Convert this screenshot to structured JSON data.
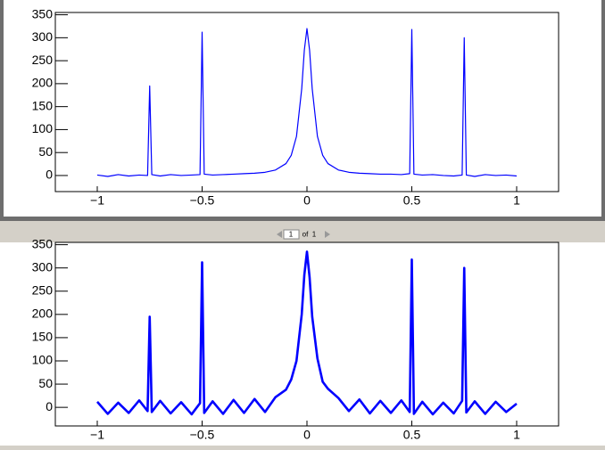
{
  "chart_data": [
    {
      "type": "line",
      "color": "#0000ff",
      "x": [
        -1,
        -0.95,
        -0.9,
        -0.85,
        -0.8,
        -0.76,
        -0.75,
        -0.74,
        -0.7,
        -0.65,
        -0.6,
        -0.55,
        -0.51,
        -0.5,
        -0.49,
        -0.45,
        -0.4,
        -0.35,
        -0.3,
        -0.25,
        -0.2,
        -0.15,
        -0.1,
        -0.075,
        -0.05,
        -0.025,
        -0.0125,
        0,
        0.0125,
        0.025,
        0.05,
        0.075,
        0.1,
        0.15,
        0.2,
        0.25,
        0.3,
        0.35,
        0.4,
        0.45,
        0.49,
        0.5,
        0.51,
        0.55,
        0.6,
        0.65,
        0.7,
        0.74,
        0.75,
        0.76,
        0.8,
        0.85,
        0.9,
        0.95,
        1
      ],
      "values": [
        1,
        -2,
        2,
        -1,
        1,
        0,
        195,
        2,
        -1,
        2,
        0,
        1,
        2,
        312,
        3,
        1,
        2,
        3,
        4,
        5,
        7,
        12,
        26,
        44,
        85,
        189,
        273,
        320,
        273,
        189,
        85,
        44,
        26,
        12,
        7,
        5,
        4,
        3,
        3,
        2,
        4,
        318,
        3,
        1,
        2,
        0,
        -1,
        1,
        300,
        1,
        -2,
        2,
        0,
        1,
        -1
      ],
      "xlim": [
        -1.2,
        1.2
      ],
      "xticks": [
        {
          "value": -1,
          "label": "−1"
        },
        {
          "value": -0.5,
          "label": "−0.5"
        },
        0,
        0.5,
        1
      ],
      "ylim": [
        -35,
        355
      ],
      "yticks": [
        0,
        50,
        100,
        150,
        200,
        250,
        300,
        350
      ]
    },
    {
      "type": "line",
      "color": "#0000ff",
      "x": [
        -1,
        -0.95,
        -0.9,
        -0.85,
        -0.8,
        -0.76,
        -0.75,
        -0.74,
        -0.7,
        -0.65,
        -0.6,
        -0.55,
        -0.51,
        -0.5,
        -0.49,
        -0.45,
        -0.4,
        -0.35,
        -0.3,
        -0.25,
        -0.2,
        -0.15,
        -0.1,
        -0.075,
        -0.05,
        -0.025,
        -0.0125,
        0,
        0.0125,
        0.025,
        0.05,
        0.075,
        0.1,
        0.15,
        0.2,
        0.25,
        0.3,
        0.35,
        0.4,
        0.45,
        0.49,
        0.5,
        0.51,
        0.55,
        0.6,
        0.65,
        0.7,
        0.74,
        0.75,
        0.76,
        0.8,
        0.85,
        0.9,
        0.95,
        1
      ],
      "values": [
        12,
        -14,
        10,
        -12,
        15,
        -8,
        195,
        -10,
        14,
        -13,
        11,
        -15,
        9,
        312,
        -12,
        13,
        -14,
        16,
        -12,
        18,
        -10,
        22,
        38,
        60,
        100,
        200,
        285,
        335,
        280,
        195,
        105,
        55,
        40,
        20,
        -8,
        17,
        -13,
        14,
        -12,
        15,
        -10,
        318,
        -14,
        12,
        -15,
        10,
        -13,
        14,
        300,
        -11,
        13,
        -14,
        12,
        -10,
        8
      ],
      "xlim": [
        -1.2,
        1.2
      ],
      "xticks": [
        {
          "value": -1,
          "label": "−1"
        },
        {
          "value": -0.5,
          "label": "−0.5"
        },
        0,
        0.5,
        1
      ],
      "ylim": [
        -40,
        355
      ],
      "yticks": [
        0,
        50,
        100,
        150,
        200,
        250,
        300,
        350
      ]
    }
  ],
  "pager": {
    "page": "1",
    "of": "of",
    "total": "1"
  }
}
